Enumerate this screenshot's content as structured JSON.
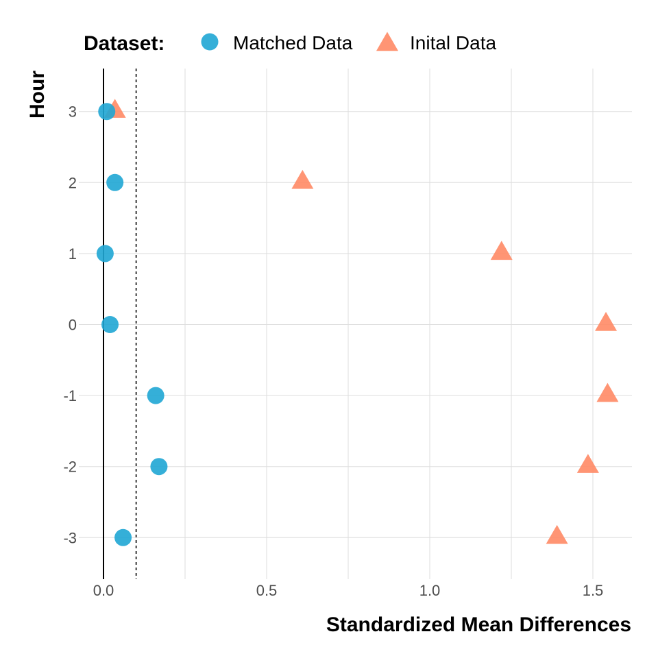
{
  "chart_data": {
    "type": "scatter",
    "title": "",
    "xlabel": "Standardized Mean Differences",
    "ylabel": "Hour",
    "xlim": [
      -0.05,
      1.62
    ],
    "ylim": [
      -3.6,
      3.6
    ],
    "x_ticks": [
      0.0,
      0.5,
      1.0,
      1.5
    ],
    "x_tick_labels": [
      "0.0",
      "0.5",
      "1.0",
      "1.5"
    ],
    "x_minor_gridlines": [
      0.25,
      0.75,
      1.25
    ],
    "y_ticks": [
      3,
      2,
      1,
      0,
      -1,
      -2,
      -3
    ],
    "y_tick_labels": [
      "3",
      "2",
      "1",
      "0",
      "-1",
      "-2",
      "-3"
    ],
    "reference_lines": [
      {
        "x": 0.0,
        "style": "solid"
      },
      {
        "x": 0.1,
        "style": "dashed"
      }
    ],
    "grid": true,
    "legend": {
      "title": "Dataset:",
      "placement": "top"
    },
    "series": [
      {
        "name": "Matched Data",
        "marker": "circle",
        "color": "#1fa6d4",
        "points": [
          {
            "x": 0.01,
            "y": 3
          },
          {
            "x": 0.035,
            "y": 2
          },
          {
            "x": 0.005,
            "y": 1
          },
          {
            "x": 0.02,
            "y": 0
          },
          {
            "x": 0.16,
            "y": -1
          },
          {
            "x": 0.17,
            "y": -2
          },
          {
            "x": 0.06,
            "y": -3
          }
        ]
      },
      {
        "name": "Inital Data",
        "marker": "triangle",
        "color": "#ff8a65",
        "points": [
          {
            "x": 0.035,
            "y": 3
          },
          {
            "x": 0.61,
            "y": 2
          },
          {
            "x": 1.22,
            "y": 1
          },
          {
            "x": 1.54,
            "y": 0
          },
          {
            "x": 1.545,
            "y": -1
          },
          {
            "x": 1.485,
            "y": -2
          },
          {
            "x": 1.39,
            "y": -3
          }
        ]
      }
    ]
  }
}
